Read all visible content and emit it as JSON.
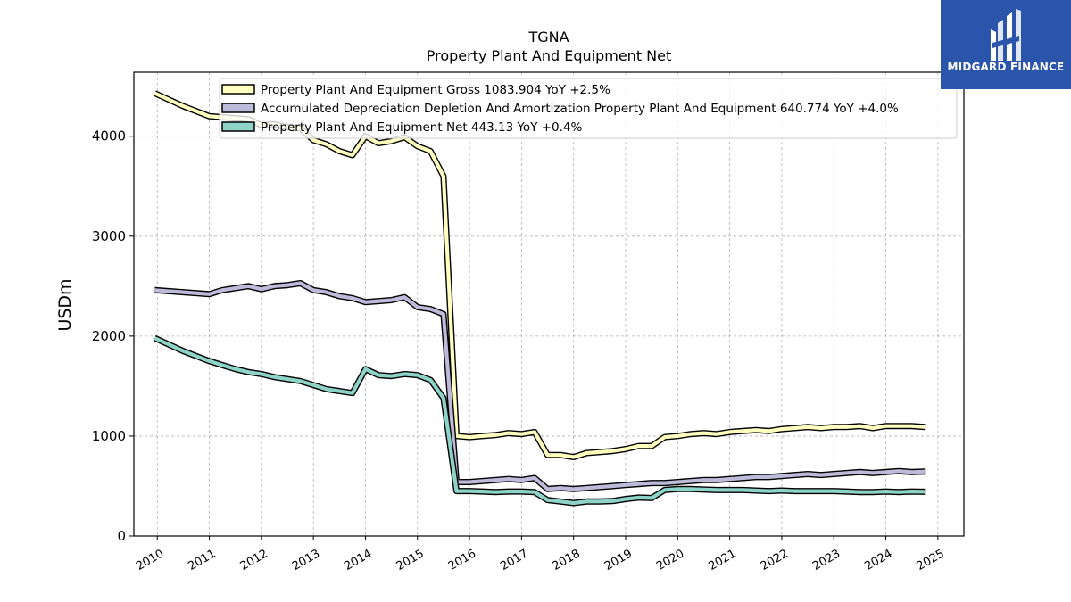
{
  "chart_data": {
    "type": "line",
    "title": "TGNA",
    "subtitle": "Property Plant And Equipment Net",
    "ylabel": "USDm",
    "xlabel": "",
    "xlim": [
      2009.55,
      2025.5
    ],
    "ylim": [
      0,
      4640
    ],
    "yticks": [
      0,
      1000,
      2000,
      3000,
      4000
    ],
    "xticks": [
      2010,
      2011,
      2012,
      2013,
      2014,
      2015,
      2016,
      2017,
      2018,
      2019,
      2020,
      2021,
      2022,
      2023,
      2024,
      2025
    ],
    "grid": true,
    "legend_position": "top",
    "series": [
      {
        "name": "Property Plant And Equipment Gross",
        "legend": "Property Plant And Equipment Gross  1083.904 YoY +2.5%",
        "color": "#ffffbf",
        "x": [
          2009.95,
          2010.5,
          2011.0,
          2011.25,
          2011.5,
          2011.75,
          2012.0,
          2012.25,
          2012.5,
          2012.75,
          2013.0,
          2013.25,
          2013.5,
          2013.75,
          2014.0,
          2014.25,
          2014.5,
          2014.75,
          2015.0,
          2015.25,
          2015.5,
          2015.75,
          2016.0,
          2016.25,
          2016.5,
          2016.75,
          2017.0,
          2017.25,
          2017.5,
          2017.75,
          2018.0,
          2018.25,
          2018.5,
          2018.75,
          2019.0,
          2019.25,
          2019.5,
          2019.75,
          2020.0,
          2020.25,
          2020.5,
          2020.75,
          2021.0,
          2021.25,
          2021.5,
          2021.75,
          2022.0,
          2022.25,
          2022.5,
          2022.75,
          2023.0,
          2023.25,
          2023.5,
          2023.75,
          2024.0,
          2024.25,
          2024.5,
          2024.75
        ],
        "values": [
          4430,
          4300,
          4200,
          4190,
          4180,
          4170,
          4110,
          4120,
          4090,
          4080,
          3960,
          3920,
          3850,
          3810,
          4000,
          3930,
          3950,
          3990,
          3900,
          3850,
          3600,
          1000,
          990,
          1000,
          1010,
          1030,
          1020,
          1040,
          810,
          810,
          790,
          830,
          840,
          850,
          870,
          900,
          900,
          990,
          1000,
          1020,
          1030,
          1020,
          1040,
          1050,
          1060,
          1050,
          1070,
          1080,
          1090,
          1080,
          1090,
          1090,
          1100,
          1080,
          1100,
          1100,
          1100,
          1090
        ]
      },
      {
        "name": "Accumulated Depreciation Depletion And Amortization Property Plant And Equipment",
        "legend": "Accumulated Depreciation Depletion And Amortization Property Plant And Equipment  640.774 YoY +4.0%",
        "color": "#bebada",
        "x": [
          2009.95,
          2010.5,
          2011.0,
          2011.25,
          2011.5,
          2011.75,
          2012.0,
          2012.25,
          2012.5,
          2012.75,
          2013.0,
          2013.25,
          2013.5,
          2013.75,
          2014.0,
          2014.25,
          2014.5,
          2014.75,
          2015.0,
          2015.25,
          2015.5,
          2015.75,
          2016.0,
          2016.25,
          2016.5,
          2016.75,
          2017.0,
          2017.25,
          2017.5,
          2017.75,
          2018.0,
          2018.25,
          2018.5,
          2018.75,
          2019.0,
          2019.25,
          2019.5,
          2019.75,
          2020.0,
          2020.25,
          2020.5,
          2020.75,
          2021.0,
          2021.25,
          2021.5,
          2021.75,
          2022.0,
          2022.25,
          2022.5,
          2022.75,
          2023.0,
          2023.25,
          2023.5,
          2023.75,
          2024.0,
          2024.25,
          2024.5,
          2024.75
        ],
        "values": [
          2460,
          2440,
          2420,
          2460,
          2480,
          2500,
          2470,
          2500,
          2510,
          2530,
          2460,
          2440,
          2400,
          2380,
          2340,
          2350,
          2360,
          2390,
          2290,
          2270,
          2220,
          540,
          540,
          550,
          560,
          570,
          560,
          580,
          470,
          480,
          470,
          480,
          490,
          500,
          510,
          520,
          530,
          530,
          540,
          550,
          560,
          560,
          570,
          580,
          590,
          590,
          600,
          610,
          620,
          610,
          620,
          630,
          640,
          630,
          640,
          650,
          640,
          645
        ]
      },
      {
        "name": "Property Plant And Equipment Net",
        "legend": "Property Plant And Equipment Net  443.13 YoY +0.4%",
        "color": "#8dd3c7",
        "x": [
          2009.95,
          2010.5,
          2011.0,
          2011.25,
          2011.5,
          2011.75,
          2012.0,
          2012.25,
          2012.5,
          2012.75,
          2013.0,
          2013.25,
          2013.5,
          2013.75,
          2014.0,
          2014.25,
          2014.5,
          2014.75,
          2015.0,
          2015.25,
          2015.5,
          2015.75,
          2016.0,
          2016.25,
          2016.5,
          2016.75,
          2017.0,
          2017.25,
          2017.5,
          2017.75,
          2018.0,
          2018.25,
          2018.5,
          2018.75,
          2019.0,
          2019.25,
          2019.5,
          2019.75,
          2020.0,
          2020.25,
          2020.5,
          2020.75,
          2021.0,
          2021.25,
          2021.5,
          2021.75,
          2022.0,
          2022.25,
          2022.5,
          2022.75,
          2023.0,
          2023.25,
          2023.5,
          2023.75,
          2024.0,
          2024.25,
          2024.5,
          2024.75
        ],
        "values": [
          1980,
          1850,
          1750,
          1710,
          1670,
          1640,
          1620,
          1590,
          1570,
          1550,
          1510,
          1470,
          1450,
          1430,
          1670,
          1610,
          1600,
          1620,
          1610,
          1560,
          1380,
          450,
          450,
          445,
          440,
          445,
          445,
          440,
          360,
          345,
          330,
          345,
          345,
          350,
          370,
          385,
          380,
          460,
          470,
          470,
          465,
          460,
          460,
          460,
          455,
          450,
          455,
          450,
          450,
          450,
          450,
          445,
          440,
          440,
          445,
          440,
          445,
          443
        ]
      }
    ]
  },
  "logo": {
    "text": "MIDGARD FINANCE"
  }
}
